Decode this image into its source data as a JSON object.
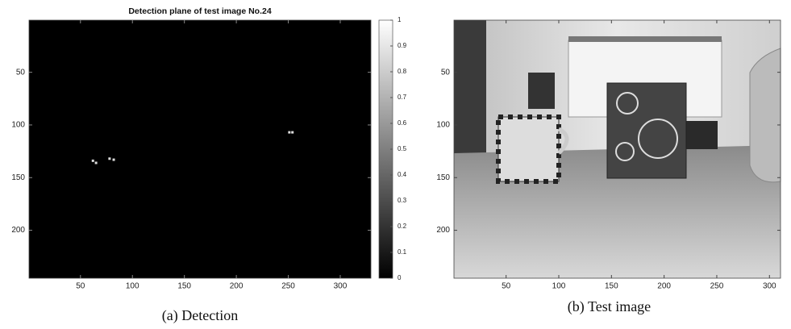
{
  "chart_data": [
    {
      "type": "image",
      "title": "Detection plane of test image No.24",
      "caption": "(a) Detection",
      "xlim": [
        0.5,
        329.5
      ],
      "ylim": [
        0.5,
        245.5
      ],
      "xticks": [
        50,
        100,
        150,
        200,
        250,
        300
      ],
      "yticks": [
        50,
        100,
        150,
        200
      ],
      "points": {
        "x": [
          62,
          65,
          78,
          82,
          251,
          254
        ],
        "y": [
          134,
          136,
          132,
          133,
          107,
          107
        ]
      },
      "colorbar": {
        "lim": [
          0,
          1
        ],
        "ticks": [
          0,
          0.1,
          0.2,
          0.3,
          0.4,
          0.5,
          0.6,
          0.7,
          0.8,
          0.9,
          1
        ]
      }
    },
    {
      "type": "photo",
      "caption": "(b) Test image",
      "xlim": [
        0.5,
        310.5
      ],
      "ylim": [
        0.5,
        245.5
      ],
      "xticks": [
        50,
        100,
        150,
        200,
        250,
        300
      ],
      "yticks": [
        50,
        100,
        150,
        200
      ]
    }
  ]
}
